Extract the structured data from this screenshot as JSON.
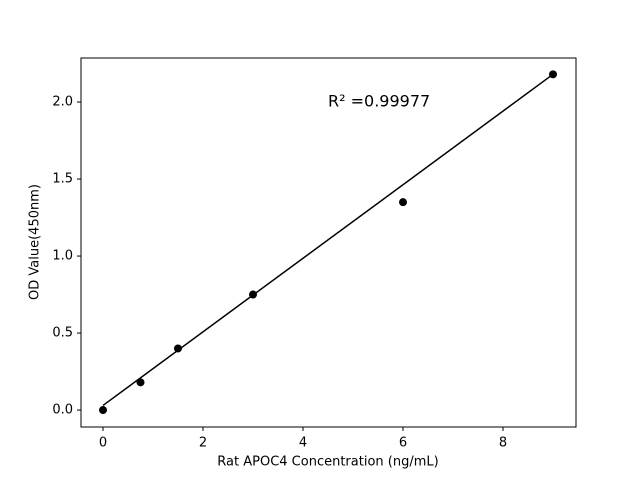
{
  "chart_data": {
    "type": "scatter",
    "x_label": "Rat APOC4 Concentration (ng/mL)",
    "y_label": "OD Value(450nm)",
    "annotation": "R² =0.99977",
    "series": [
      {
        "mode": "markers",
        "color": "#000000",
        "x": [
          0,
          0.75,
          1.5,
          3,
          6,
          9
        ],
        "values": [
          0,
          0.18,
          0.4,
          0.75,
          1.35,
          2.18
        ]
      },
      {
        "mode": "line",
        "color": "#000000",
        "x": [
          0,
          9
        ],
        "values": [
          0.03,
          2.18
        ]
      }
    ],
    "xlim": [
      -0.44,
      9.46
    ],
    "xticks": [
      0,
      2,
      4,
      6,
      8
    ],
    "ylim": [
      -0.11,
      2.286
    ],
    "yticks": [
      {
        "value": 0,
        "label": "0.0"
      },
      {
        "value": 0.5,
        "label": "0.5"
      },
      {
        "value": 1,
        "label": "1.0"
      },
      {
        "value": 1.5,
        "label": "1.5"
      },
      {
        "value": 2,
        "label": "2.0"
      }
    ]
  }
}
